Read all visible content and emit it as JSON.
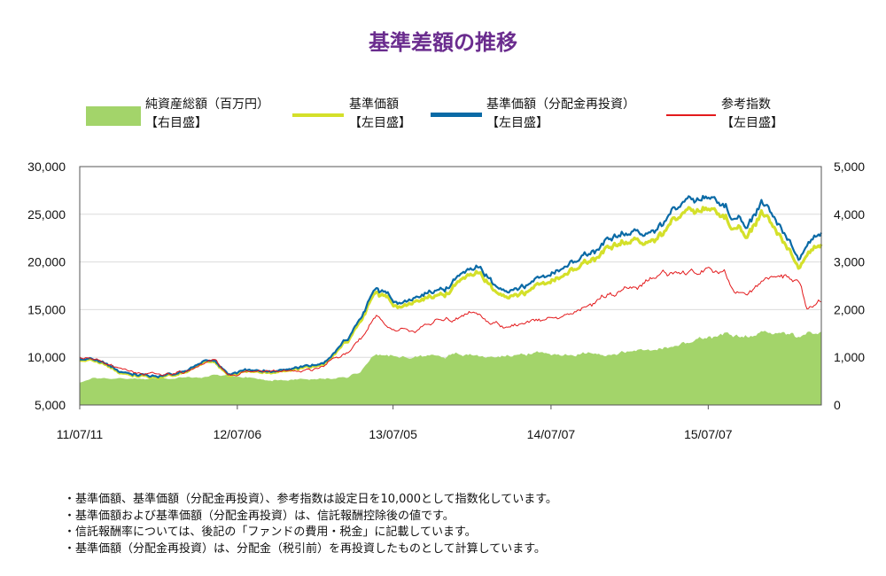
{
  "title": "基準差額の推移",
  "legend": [
    {
      "line1": "純資産総額（百万円）",
      "line2": "【右目盛】",
      "color": "#a3d46a",
      "kind": "area"
    },
    {
      "line1": "基準価額",
      "line2": "【左目盛】",
      "color": "#d4e02a",
      "kind": "line"
    },
    {
      "line1": "基準価額（分配金再投資）",
      "line2": "【左目盛】",
      "color": "#0a6aa6",
      "kind": "line"
    },
    {
      "line1": "参考指数",
      "line2": "【左目盛】",
      "color": "#e31a1c",
      "kind": "line"
    }
  ],
  "notes": [
    "・基準価額、基準価額（分配金再投資）、参考指数は設定日を10,000として指数化しています。",
    "・基準価額および基準価額（分配金再投資）は、信託報酬控除後の値です。",
    "・信託報酬率については、後記の「ファンドの費用・税金」に記載しています。",
    "・基準価額（分配金再投資）は、分配金（税引前）を再投資したものとして計算しています。"
  ],
  "chart_data": {
    "type": "line",
    "x_tick_labels": [
      "11/07/11",
      "12/07/06",
      "13/07/05",
      "14/07/07",
      "15/07/07"
    ],
    "x_tick_positions": [
      0,
      0.2125,
      0.4225,
      0.6355,
      0.8475
    ],
    "y_left": {
      "ticks": [
        "5,000",
        "10,000",
        "15,000",
        "20,000",
        "25,000",
        "30,000"
      ],
      "range": [
        5000,
        30000
      ]
    },
    "y_right": {
      "ticks": [
        "0",
        "1,000",
        "2,000",
        "3,000",
        "4,000",
        "5,000"
      ],
      "range": [
        0,
        5000
      ]
    },
    "x_domain": [
      0,
      1
    ],
    "series": [
      {
        "name": "純資産総額（百万円）",
        "axis": "right",
        "type": "area",
        "color": "#a3d46a",
        "x": [
          0,
          0.02,
          0.1,
          0.15,
          0.2,
          0.25,
          0.28,
          0.3,
          0.33,
          0.36,
          0.38,
          0.4,
          0.43,
          0.47,
          0.5,
          0.55,
          0.6,
          0.65,
          0.7,
          0.72,
          0.76,
          0.8,
          0.84,
          0.87,
          0.9,
          0.93,
          0.95,
          0.97,
          0.99,
          1.0
        ],
        "values": [
          480,
          560,
          560,
          570,
          620,
          540,
          540,
          550,
          540,
          580,
          740,
          1150,
          980,
          1050,
          1050,
          1020,
          1080,
          1070,
          1110,
          1070,
          1150,
          1200,
          1380,
          1420,
          1390,
          1560,
          1550,
          1420,
          1480,
          1490
        ]
      },
      {
        "name": "基準価額",
        "axis": "left",
        "type": "line",
        "color": "#d4e02a",
        "x": [
          0,
          0.02,
          0.06,
          0.1,
          0.14,
          0.18,
          0.2,
          0.25,
          0.28,
          0.3,
          0.33,
          0.36,
          0.38,
          0.4,
          0.43,
          0.45,
          0.47,
          0.5,
          0.52,
          0.54,
          0.56,
          0.58,
          0.6,
          0.62,
          0.65,
          0.68,
          0.7,
          0.72,
          0.75,
          0.78,
          0.81,
          0.84,
          0.87,
          0.88,
          0.9,
          0.92,
          0.93,
          0.95,
          0.97,
          0.98,
          1.0
        ],
        "values": [
          9800,
          9700,
          8400,
          8000,
          8400,
          9800,
          8200,
          8600,
          8500,
          8700,
          9400,
          11500,
          13500,
          16800,
          15000,
          15900,
          16500,
          16800,
          18600,
          19200,
          16900,
          16700,
          16600,
          17700,
          18300,
          19700,
          20300,
          21400,
          22200,
          22600,
          24700,
          25600,
          25300,
          23300,
          22300,
          25000,
          24400,
          22300,
          19500,
          20700,
          21700
        ]
      },
      {
        "name": "基準価額（分配金再投資）",
        "axis": "left",
        "type": "line",
        "color": "#0a6aa6",
        "x": [
          0,
          0.02,
          0.06,
          0.1,
          0.14,
          0.18,
          0.2,
          0.25,
          0.28,
          0.3,
          0.33,
          0.36,
          0.38,
          0.4,
          0.43,
          0.45,
          0.47,
          0.5,
          0.52,
          0.54,
          0.56,
          0.58,
          0.6,
          0.62,
          0.65,
          0.68,
          0.7,
          0.72,
          0.75,
          0.78,
          0.81,
          0.84,
          0.87,
          0.88,
          0.9,
          0.92,
          0.93,
          0.95,
          0.97,
          0.98,
          1.0
        ],
        "values": [
          9900,
          9800,
          8500,
          8100,
          8500,
          9900,
          8300,
          8700,
          8600,
          8800,
          9500,
          11700,
          13800,
          17200,
          15400,
          16300,
          17000,
          17400,
          19200,
          19800,
          17500,
          17300,
          17300,
          18400,
          19100,
          20500,
          21100,
          22300,
          23100,
          23600,
          25800,
          26800,
          26500,
          24300,
          23300,
          26100,
          25500,
          23300,
          20400,
          21700,
          22900
        ]
      },
      {
        "name": "参考指数",
        "axis": "left",
        "type": "line",
        "color": "#e31a1c",
        "x": [
          0,
          0.02,
          0.06,
          0.1,
          0.14,
          0.18,
          0.2,
          0.25,
          0.28,
          0.3,
          0.33,
          0.36,
          0.38,
          0.4,
          0.42,
          0.45,
          0.48,
          0.5,
          0.53,
          0.55,
          0.58,
          0.6,
          0.63,
          0.65,
          0.68,
          0.7,
          0.73,
          0.76,
          0.79,
          0.82,
          0.85,
          0.87,
          0.88,
          0.9,
          0.93,
          0.95,
          0.97,
          0.98,
          1.0
        ],
        "values": [
          9900,
          9800,
          8600,
          8200,
          8500,
          9800,
          8300,
          8600,
          8500,
          8600,
          9100,
          10600,
          12000,
          14200,
          13000,
          12800,
          13500,
          14000,
          14700,
          13500,
          13300,
          13700,
          14200,
          14100,
          15300,
          16100,
          16800,
          17700,
          18700,
          19000,
          19100,
          18900,
          16800,
          16900,
          18400,
          18400,
          17600,
          15200,
          15900
        ]
      }
    ]
  }
}
